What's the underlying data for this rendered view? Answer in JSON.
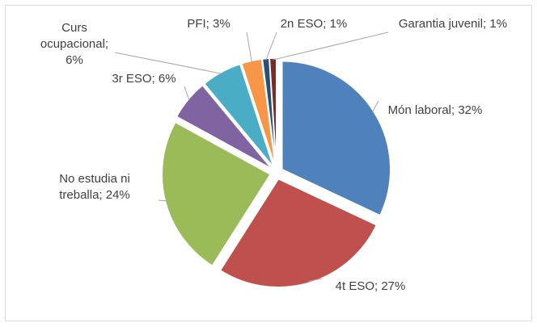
{
  "chart_data": {
    "type": "pie",
    "value_labels": [
      "Món laboral; 32%",
      "4t ESO; 27%",
      "No estudia ni treballa; 24%",
      "3r ESO; 6%",
      "Curs ocupacional; 6%",
      "PFI; 3%",
      "2n ESO; 1%",
      "Garantia juvenil; 1%"
    ],
    "values": [
      32,
      27,
      24,
      6,
      6,
      3,
      1,
      1
    ],
    "colors": [
      "#4f81bd",
      "#c0504d",
      "#9bbb59",
      "#8064a2",
      "#4bacc6",
      "#f79646",
      "#2c4d75",
      "#772c2a"
    ]
  }
}
